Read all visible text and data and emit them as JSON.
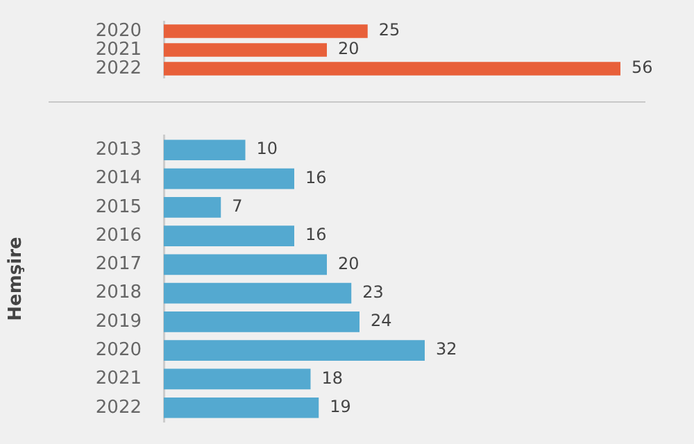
{
  "chart_data": [
    {
      "type": "bar",
      "orientation": "horizontal",
      "categories": [
        "2020",
        "2021",
        "2022"
      ],
      "values": [
        25,
        20,
        56
      ],
      "color": "#e8603a",
      "data_labels": true
    },
    {
      "type": "bar",
      "orientation": "horizontal",
      "ylabel": "Hemşire",
      "categories": [
        "2013",
        "2014",
        "2015",
        "2016",
        "2017",
        "2018",
        "2019",
        "2020",
        "2021",
        "2022"
      ],
      "values": [
        10,
        16,
        7,
        16,
        20,
        23,
        24,
        32,
        18,
        19
      ],
      "color": "#54a9d0",
      "data_labels": true
    }
  ]
}
